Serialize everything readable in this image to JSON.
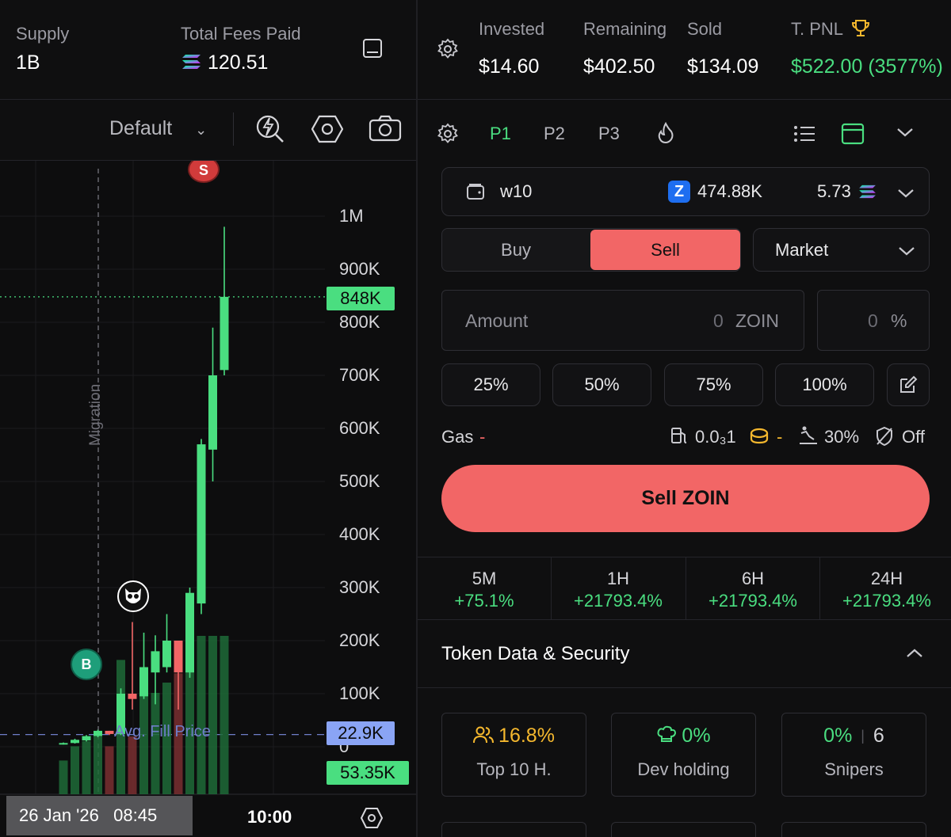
{
  "left_header": {
    "supply_label": "Supply",
    "supply_value": "1B",
    "fees_label": "Total Fees Paid",
    "fees_value": "120.51",
    "fees_icon": "solana-icon"
  },
  "right_header": {
    "invested_label": "Invested",
    "invested_value": "$14.60",
    "remaining_label": "Remaining",
    "remaining_value": "$402.50",
    "sold_label": "Sold",
    "sold_value": "$134.09",
    "pnl_label": "T. PNL",
    "pnl_value": "$522.00 (3577%)"
  },
  "chart_toolbar": {
    "layout_label": "Default"
  },
  "chart": {
    "migration_label": "Migration",
    "avg_fill_label": "Avg. Fill Price",
    "y_labels": [
      "1M",
      "900K",
      "800K",
      "700K",
      "600K",
      "500K",
      "400K",
      "300K",
      "200K",
      "100K",
      "0"
    ],
    "current_price_tag": "848K",
    "avg_price_tag": "22.9K",
    "volume_tag": "53.35K",
    "x_date": "26 Jan '26   08:45",
    "x_time": "10:00",
    "sell_marker": "S",
    "buy_marker": "B"
  },
  "chart_data": {
    "type": "candlestick",
    "y_axis_ticks": [
      "1M",
      "900K",
      "800K",
      "700K",
      "600K",
      "500K",
      "400K",
      "300K",
      "200K",
      "100K",
      "0"
    ],
    "ylim": [
      0,
      1000000
    ],
    "candles": [
      {
        "o": 5000,
        "h": 8000,
        "l": 4000,
        "c": 7000,
        "up": true
      },
      {
        "o": 7000,
        "h": 15000,
        "l": 6000,
        "c": 13000,
        "up": true
      },
      {
        "o": 12000,
        "h": 22000,
        "l": 10000,
        "c": 20000,
        "up": true
      },
      {
        "o": 20000,
        "h": 32000,
        "l": 18000,
        "c": 30000,
        "up": true
      },
      {
        "o": 30000,
        "h": 25000,
        "l": 22000,
        "c": 24000,
        "up": false
      },
      {
        "o": 24000,
        "h": 110000,
        "l": 22000,
        "c": 100000,
        "up": true
      },
      {
        "o": 100000,
        "h": 235000,
        "l": 70000,
        "c": 90000,
        "up": false
      },
      {
        "o": 95000,
        "h": 215000,
        "l": 90000,
        "c": 150000,
        "up": true
      },
      {
        "o": 140000,
        "h": 210000,
        "l": 80000,
        "c": 180000,
        "up": true
      },
      {
        "o": 150000,
        "h": 250000,
        "l": 140000,
        "c": 200000,
        "up": true
      },
      {
        "o": 200000,
        "h": 190000,
        "l": 70000,
        "c": 140000,
        "up": false
      },
      {
        "o": 140000,
        "h": 300000,
        "l": 130000,
        "c": 290000,
        "up": true
      },
      {
        "o": 270000,
        "h": 580000,
        "l": 250000,
        "c": 570000,
        "up": true
      },
      {
        "o": 560000,
        "h": 790000,
        "l": 500000,
        "c": 700000,
        "up": true
      },
      {
        "o": 710000,
        "h": 980000,
        "l": 700000,
        "c": 848000,
        "up": true
      }
    ],
    "current_price": 848000,
    "avg_fill_price": 22900,
    "volume_last": 53350
  },
  "panel_tabs": {
    "p1": "P1",
    "p2": "P2",
    "p3": "P3"
  },
  "wallet": {
    "name": "w10",
    "token_balance": "474.88K",
    "sol_balance": "5.73"
  },
  "trade": {
    "buy_label": "Buy",
    "sell_label": "Sell",
    "order_type": "Market",
    "amount_label": "Amount",
    "amount_value": "0",
    "amount_unit": "ZOIN",
    "percent_value": "0",
    "percent_unit": "%",
    "quick": [
      "25%",
      "50%",
      "75%",
      "100%"
    ],
    "gas_label": "Gas",
    "gas_value": "-",
    "priority_fee": "0.0₃1",
    "tip_value": "-",
    "slippage": "30%",
    "mev": "Off",
    "submit_label": "Sell ZOIN"
  },
  "timeframes": [
    {
      "label": "5M",
      "change": "+75.1%"
    },
    {
      "label": "1H",
      "change": "+21793.4%"
    },
    {
      "label": "6H",
      "change": "+21793.4%"
    },
    {
      "label": "24H",
      "change": "+21793.4%"
    }
  ],
  "security": {
    "title": "Token Data & Security",
    "top10_value": "16.8%",
    "top10_label": "Top 10 H.",
    "dev_value": "0%",
    "dev_label": "Dev holding",
    "snipers_value": "0%",
    "snipers_count": "6",
    "snipers_label": "Snipers"
  },
  "colors": {
    "accent_green": "#4ade80",
    "sell_red": "#f26666",
    "yellow": "#f5b82e",
    "avg_tag": "#8aa4f5"
  }
}
